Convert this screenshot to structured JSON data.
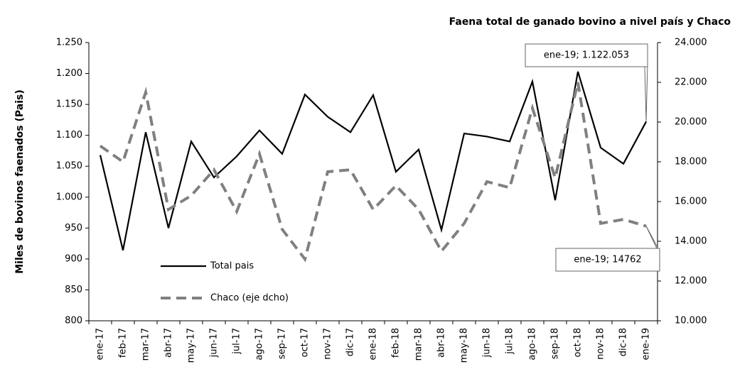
{
  "chart_data": {
    "type": "line",
    "title": "Faena total de ganado bovino a nivel país y Chaco",
    "y_label": "Miles de bovinos faenados (Pais)",
    "categories": [
      "ene-17",
      "feb-17",
      "mar-17",
      "abr-17",
      "may-17",
      "jun-17",
      "jul-17",
      "ago-17",
      "sep-17",
      "oct-17",
      "nov-17",
      "dic-17",
      "ene-18",
      "feb-18",
      "mar-18",
      "abr-18",
      "may-18",
      "jun-18",
      "jul-18",
      "ago-18",
      "sep-18",
      "oct-18",
      "nov-18",
      "dic-18",
      "ene-19"
    ],
    "series": [
      {
        "name": "Total pais",
        "color": "#000000",
        "dash": false,
        "values": [
          1068,
          914,
          1105,
          950,
          1090,
          1032,
          1066,
          1108,
          1070,
          1166,
          1130,
          1105,
          1165,
          1041,
          1077,
          947,
          1103,
          1098,
          1090,
          1187,
          995,
          1203,
          1080,
          1054,
          1122.053
        ]
      },
      {
        "name": "Chaco (eje dcho)",
        "color": "#808080",
        "dash": true,
        "axis": "y2",
        "values": [
          18800,
          18000,
          21500,
          15600,
          16300,
          17600,
          15500,
          18400,
          14600,
          13100,
          17500,
          17600,
          15600,
          16800,
          15600,
          13500,
          14900,
          17000,
          16700,
          20700,
          17200,
          22000,
          14900,
          15100,
          14762
        ]
      }
    ],
    "ylim": [
      800,
      1250
    ],
    "yticks": [
      800,
      850,
      900,
      950,
      {
        "value": 1000,
        "label": "1.000"
      },
      {
        "value": 1050,
        "label": "1.050"
      },
      {
        "value": 1100,
        "label": "1.100"
      },
      {
        "value": 1150,
        "label": "1.150"
      },
      {
        "value": 1200,
        "label": "1.200"
      },
      {
        "value": 1250,
        "label": "1.250"
      }
    ],
    "y2lim": [
      10000,
      24000
    ],
    "y2ticks": [
      {
        "value": 10000,
        "label": "10.000"
      },
      {
        "value": 12000,
        "label": "12.000"
      },
      {
        "value": 14000,
        "label": "14.000"
      },
      {
        "value": 16000,
        "label": "16.000"
      },
      {
        "value": 18000,
        "label": "18.000"
      },
      {
        "value": 20000,
        "label": "20.000"
      },
      {
        "value": 22000,
        "label": "22.000"
      },
      {
        "value": 24000,
        "label": "24.000"
      }
    ],
    "annotations": [
      {
        "text": "ene-19; 1.122.053"
      },
      {
        "text": "ene-19; 14762"
      }
    ],
    "legend": "lower left",
    "grid": false
  }
}
